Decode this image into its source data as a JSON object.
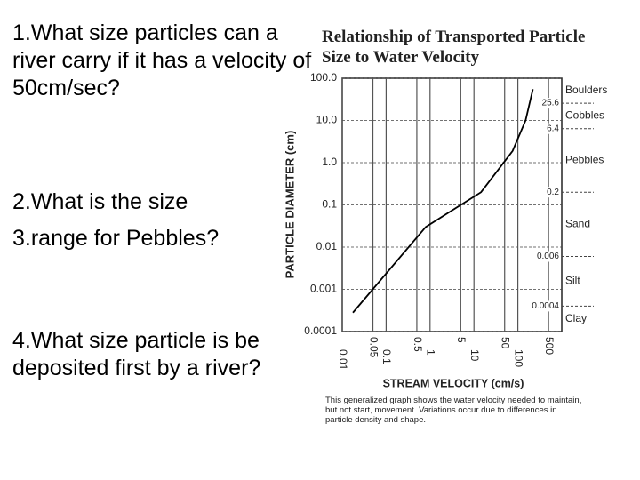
{
  "questions": [
    "1.What size particles can a river carry if it has a velocity of 50cm/sec?",
    "2.What is the size",
    "3.range for Pebbles?",
    "4.What size particle is be deposited first by a river?"
  ],
  "chart_data": {
    "type": "line",
    "title": "Relationship of Transported Particle Size to Water Velocity",
    "x_label": "STREAM VELOCITY (cm/s)",
    "y_label": "PARTICLE DIAMETER (cm)",
    "note": "This generalized graph shows the water velocity needed to maintain, but not start, movement. Variations occur due to differences in particle density and shape.",
    "x": [
      0.0175,
      0.8,
      14.5,
      76,
      150,
      220
    ],
    "values": [
      0.00028,
      0.03,
      0.2,
      1.9,
      10,
      55
    ],
    "color": "#000000",
    "log_x": true,
    "log_y": true,
    "grid": true,
    "xlim": [
      0.01,
      1000
    ],
    "xticks": [
      0.01,
      0.05,
      0.1,
      0.5,
      1,
      5,
      10,
      50,
      100,
      500
    ],
    "ylim": [
      0.0001,
      100
    ],
    "yticks": [
      {
        "value": 100,
        "label": "100.0"
      },
      {
        "value": 10,
        "label": "10.0"
      },
      {
        "value": 1,
        "label": "1.0"
      },
      0.1,
      0.01,
      0.001,
      0.0001
    ],
    "boundaries": [
      25.6,
      6.4,
      0.2,
      0.006,
      0.0004
    ],
    "classes": [
      "Boulders",
      "Cobbles",
      "Pebbles",
      "Sand",
      "Silt",
      "Clay"
    ]
  }
}
